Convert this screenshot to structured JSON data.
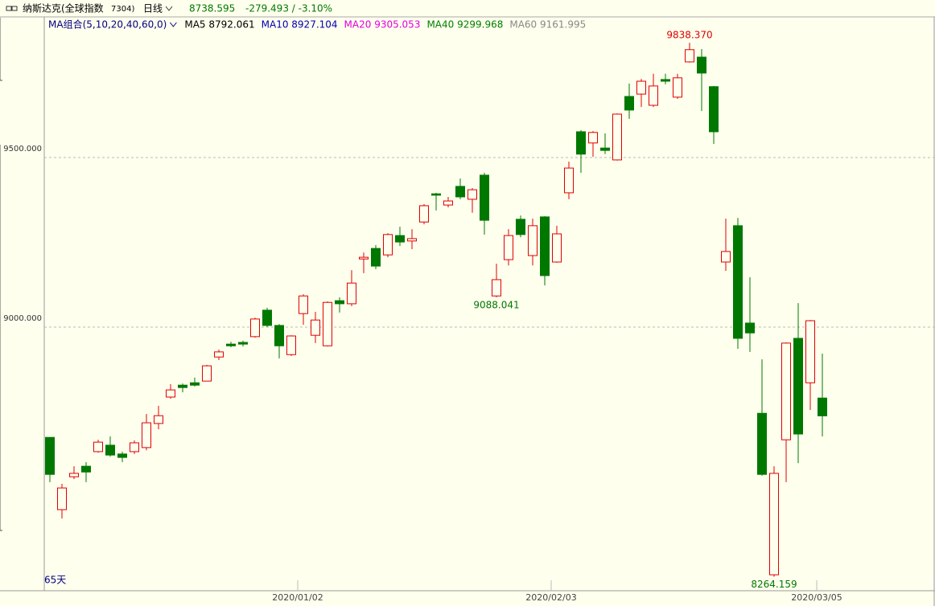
{
  "header": {
    "title": "纳斯达克(全球指数",
    "code": "7304)",
    "period": "日线",
    "price": "8738.595",
    "change": "-279.493 / -3.10%"
  },
  "chart_data": {
    "type": "candlestick",
    "ma_legend": [
      {
        "text": "MA组合(5,10,20,40,60,0)",
        "color": "#000080"
      },
      {
        "text": "MA5 8792.061",
        "color": "#000000"
      },
      {
        "text": "MA10 8927.104",
        "color": "#0000b0"
      },
      {
        "text": "MA20 9305.053",
        "color": "#e000e0"
      },
      {
        "text": "MA40 9299.968",
        "color": "#008000"
      },
      {
        "text": "MA60 9161.995",
        "color": "#888888"
      }
    ],
    "categories": [
      null,
      null,
      null,
      null,
      null,
      null,
      null,
      null,
      null,
      null,
      null,
      null,
      null,
      null,
      null,
      null,
      null,
      null,
      null,
      null,
      null,
      "2020/01/02",
      null,
      null,
      null,
      null,
      null,
      null,
      null,
      null,
      null,
      null,
      null,
      null,
      null,
      null,
      null,
      null,
      null,
      null,
      null,
      null,
      "2020/02/03",
      null,
      null,
      null,
      null,
      null,
      null,
      null,
      null,
      null,
      null,
      null,
      null,
      null,
      null,
      null,
      null,
      null,
      null,
      null,
      null,
      null,
      "2020/03/05"
    ],
    "open": [
      8675,
      8462,
      8559,
      8590,
      8633,
      8652,
      8626,
      8633,
      8645,
      8716,
      8794,
      8829,
      8836,
      8841,
      8912,
      8950,
      8955,
      8972,
      9050,
      9005,
      8919,
      9040,
      8976,
      8945,
      9078,
      9069,
      9201,
      9232,
      9213,
      9270,
      9254,
      9310,
      9393,
      9360,
      9415,
      9377,
      9448,
      9092,
      9199,
      9318,
      9211,
      9325,
      9192,
      9396,
      9576,
      9543,
      9528,
      9493,
      9680,
      9687,
      9654,
      9730,
      9678,
      9782,
      9796,
      9709,
      9192,
      9299,
      9012,
      8746,
      8270,
      8668,
      8967,
      8836,
      8791
    ],
    "high": [
      8675,
      8538,
      8590,
      8602,
      8668,
      8678,
      8633,
      8666,
      8744,
      8768,
      8832,
      8834,
      8851,
      8889,
      8934,
      8957,
      8960,
      9028,
      9057,
      9009,
      8976,
      9097,
      9045,
      9076,
      9088,
      9168,
      9220,
      9242,
      9277,
      9296,
      9289,
      9363,
      9396,
      9384,
      9438,
      9410,
      9455,
      9187,
      9289,
      9329,
      9320,
      9327,
      9299,
      9488,
      9581,
      9578,
      9571,
      9630,
      9718,
      9732,
      9747,
      9747,
      9747,
      9838.37,
      9820,
      9711,
      9320,
      9322,
      9147,
      8905,
      8590,
      8955,
      9071,
      9021,
      8922
    ],
    "low": [
      8543,
      8436,
      8552,
      8543,
      8630,
      8618,
      8602,
      8626,
      8637,
      8699,
      8789,
      8808,
      8825,
      8841,
      8903,
      8941,
      8943,
      8969,
      9000,
      8908,
      8915,
      9007,
      8953,
      8943,
      9043,
      9062,
      9159,
      9171,
      9206,
      9239,
      9230,
      9303,
      9344,
      9353,
      9377,
      9337,
      9273,
      9088.041,
      9182,
      9265,
      9182,
      9123,
      9190,
      9377,
      9455,
      9502,
      9510,
      9491,
      9614,
      9649,
      9649,
      9716,
      9673,
      9780,
      9637,
      9540,
      9166,
      8936,
      8927,
      8562,
      8264.159,
      8543,
      8599,
      8756,
      8678
    ],
    "close": [
      8566,
      8526,
      8569,
      8573,
      8661,
      8623,
      8616,
      8659,
      8718,
      8739,
      8815,
      8822,
      8829,
      8886,
      8927,
      8945,
      8950,
      9024,
      9005,
      8945,
      8974,
      9092,
      9021,
      9073,
      9069,
      9130,
      9206,
      9180,
      9273,
      9251,
      9261,
      9358,
      9389,
      9372,
      9384,
      9405,
      9315,
      9140,
      9270,
      9273,
      9299,
      9152,
      9275,
      9469,
      9510,
      9574,
      9521,
      9628,
      9640,
      9725,
      9711,
      9725,
      9735,
      9818,
      9749,
      9576,
      9223,
      8967,
      8983,
      8566,
      8569,
      8953,
      8685,
      9019,
      8738.595
    ],
    "up_color": "#e00000",
    "down_color": "#007800",
    "ylim": [
      8223,
      9917
    ],
    "yticks": [
      {
        "value": 9000,
        "label": "9000.000"
      },
      {
        "value": 9500,
        "label": "9500.000"
      }
    ],
    "grid": true,
    "annotations": [
      {
        "label": "9838.370",
        "value": 9838.37,
        "color": "#e00000"
      },
      {
        "label": "9088.041",
        "value": 9088.041,
        "color": "#007800"
      },
      {
        "label": "8264.159",
        "value": 8264.159,
        "color": "#007800"
      }
    ],
    "period_label": "65天"
  }
}
